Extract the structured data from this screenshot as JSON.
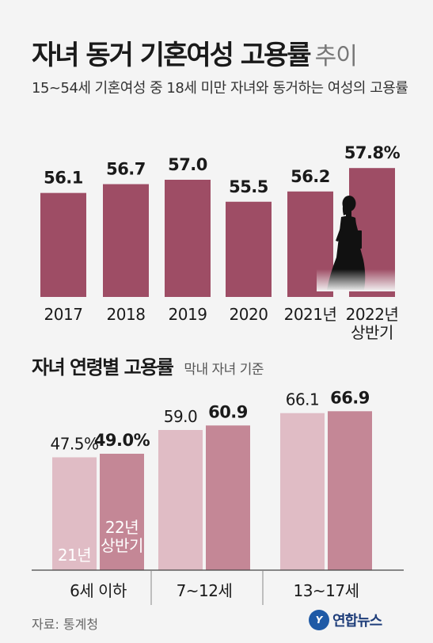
{
  "header": {
    "title_bold": "자녀 동거 기혼여성 고용률",
    "title_light": "추이",
    "subtitle": "15~54세 기혼여성 중 18세 미만 자녀와 동거하는 여성의 고용률"
  },
  "section2": {
    "title": "자녀 연령별 고용률",
    "note": "막내 자녀 기준"
  },
  "footer": {
    "source": "자료: 통계청",
    "logo_text": "연합뉴스",
    "logo_mark": "Y"
  },
  "colors": {
    "bar_top": "#9e4d65",
    "bar_21": "#e0bcc5",
    "bar_22": "#c48796",
    "silhouette": "#111111"
  },
  "icons": [
    "woman-silhouette-icon"
  ],
  "chart_data": [
    {
      "type": "bar",
      "categories": [
        "2017",
        "2018",
        "2019",
        "2020",
        "2021년",
        "2022년\n상반기"
      ],
      "values": [
        56.1,
        56.7,
        57.0,
        55.5,
        56.2,
        57.8
      ],
      "value_labels": [
        "56.1",
        "56.7",
        "57.0",
        "55.5",
        "56.2",
        "57.8%"
      ],
      "unit": "%"
    },
    {
      "type": "bar",
      "categories": [
        "6세 이하",
        "7~12세",
        "13~17세"
      ],
      "series": [
        {
          "name": "21년",
          "values": [
            47.5,
            59.0,
            66.1
          ],
          "value_labels": [
            "47.5%",
            "59.0",
            "66.1"
          ]
        },
        {
          "name": "22년\n상반기",
          "values": [
            49.0,
            60.9,
            66.9
          ],
          "value_labels": [
            "49.0%",
            "60.9",
            "66.9"
          ]
        }
      ],
      "unit": "%"
    }
  ]
}
